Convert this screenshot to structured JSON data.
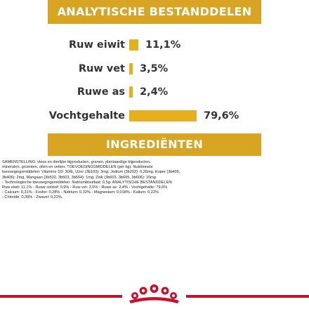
{
  "analytics": {
    "heading": "ANALYTISCHE BESTANDDELEN",
    "rows": [
      {
        "label": "Ruw eiwit",
        "value": "11,1%",
        "percent": 11.1
      },
      {
        "label": "Ruw vet",
        "value": "3,5%",
        "percent": 3.5
      },
      {
        "label": "Ruwe as",
        "value": "2,4%",
        "percent": 2.4
      },
      {
        "label": "Vochtgehalte",
        "value": "79,6%",
        "percent": 79.6
      }
    ]
  },
  "ingredients": {
    "heading": "INGREDIËNTEN",
    "lines": [
      "SAMENSTELLING: vlees en dierlijke bijproducten, granen, plantaardige bijproducten,",
      "mineralen, groenten, oliën en vetten. TOEVOEGINGSMIDDELEN (per kg): Nutritionele",
      "toevoegingsmiddelen: Vitamine D3: 30IE, IJzer (3b103): 3mg, Jodium (3b202): 0,26mg, Koper (3b405,",
      "3b406): 2mg, Mangaan (3b502, 3b503, 3b504): 1mg, Zink (3b603, 3b605, 3b606): 10mg",
      "- Technologische toevoegingsmiddelen: Natriumbisulfaat: 0,5g. ANALYTISCHE BESTANDDELEN:",
      "Ruw eiwit: 11,1% - Ruwe celstof: 0,9% - Ruw vet: 3,5% - Ruwe as: 2,4% - Vochtgehalte: 79,6%",
      "- Calcium: 0,31% - Fosfor: 0,28% - Natrium: 0,32% - Magnesium: 0,018% - Kalium: 0,22%",
      "- Chloride: 0,39% - Zwavel: 0,22%."
    ]
  },
  "colors": {
    "banner": "#d8a423",
    "bar": "#e4b020",
    "footer": "#c8102e"
  },
  "logo": {
    "icon": "royal-canin-crown-icon"
  }
}
